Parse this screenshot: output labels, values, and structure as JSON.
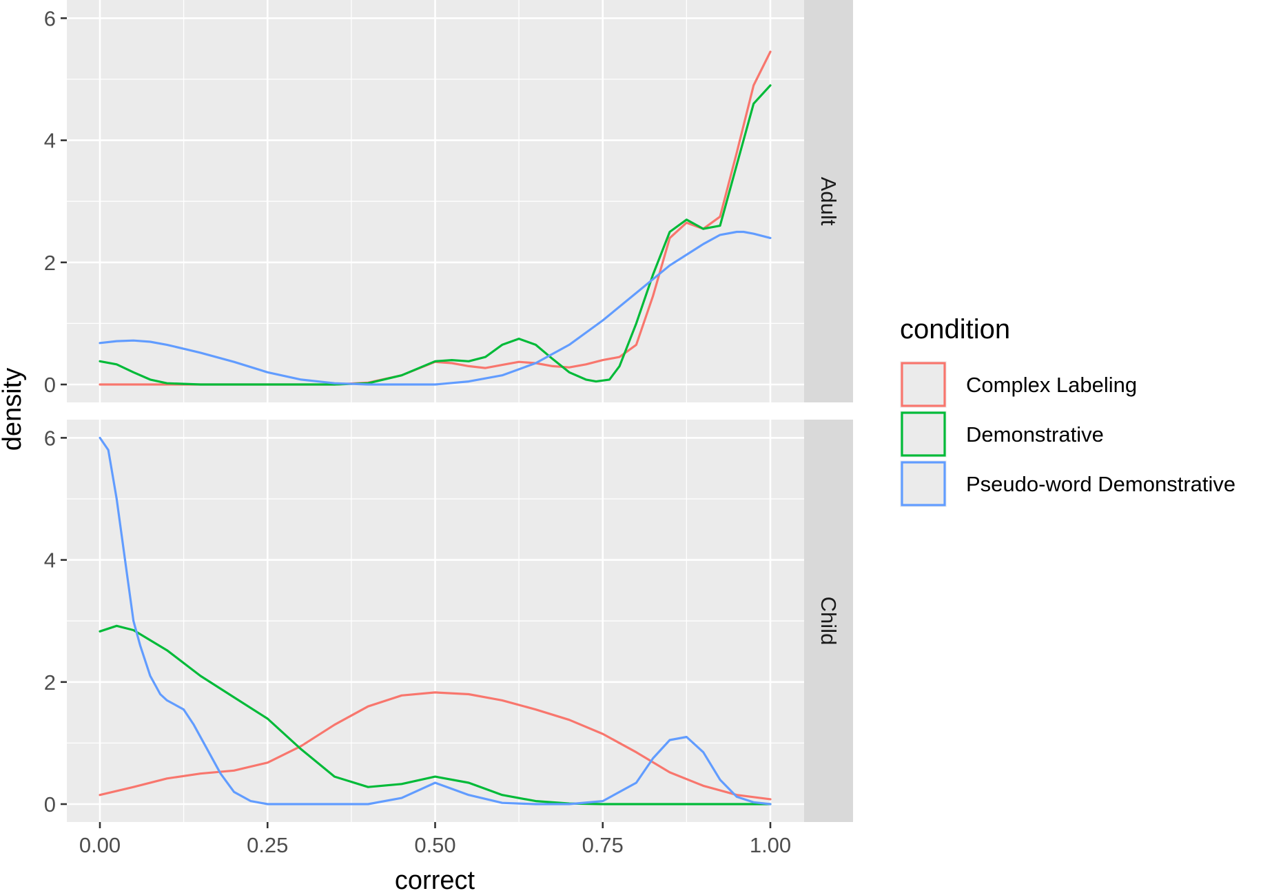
{
  "chart_data": {
    "type": "line",
    "facet_by": "age group",
    "xlabel": "correct",
    "ylabel": "density",
    "xlim": [
      0,
      1
    ],
    "ylim": [
      0,
      6.5
    ],
    "x_ticks": [
      0,
      0.25,
      0.5,
      0.75,
      1
    ],
    "x_tick_labels": [
      "0.00",
      "0.25",
      "0.50",
      "0.75",
      "1.00"
    ],
    "y_ticks": [
      0,
      2,
      4,
      6
    ],
    "y_tick_labels": [
      "0",
      "2",
      "4",
      "6"
    ],
    "grid": true,
    "legend": {
      "title": "condition",
      "position": "right",
      "entries": [
        {
          "name": "Complex Labeling",
          "color": "#F8766D"
        },
        {
          "name": "Demonstrative",
          "color": "#00BA38"
        },
        {
          "name": "Pseudo-word Demonstrative",
          "color": "#619CFF"
        }
      ]
    },
    "panels": [
      {
        "label": "Adult",
        "series": [
          {
            "name": "Complex Labeling",
            "color": "#F8766D",
            "x": [
              0,
              0.05,
              0.1,
              0.15,
              0.2,
              0.25,
              0.3,
              0.35,
              0.4,
              0.45,
              0.5,
              0.525,
              0.55,
              0.575,
              0.6,
              0.625,
              0.65,
              0.675,
              0.7,
              0.725,
              0.75,
              0.775,
              0.8,
              0.825,
              0.85,
              0.875,
              0.9,
              0.925,
              0.95,
              0.975,
              1.0
            ],
            "y": [
              0,
              0,
              0,
              0,
              0,
              0,
              0,
              0,
              0.03,
              0.15,
              0.37,
              0.35,
              0.3,
              0.27,
              0.32,
              0.37,
              0.35,
              0.3,
              0.28,
              0.33,
              0.4,
              0.45,
              0.65,
              1.45,
              2.4,
              2.65,
              2.55,
              2.75,
              3.8,
              4.9,
              5.45
            ]
          },
          {
            "name": "Demonstrative",
            "color": "#00BA38",
            "x": [
              0,
              0.025,
              0.05,
              0.075,
              0.1,
              0.15,
              0.2,
              0.25,
              0.3,
              0.35,
              0.4,
              0.45,
              0.5,
              0.525,
              0.55,
              0.575,
              0.6,
              0.625,
              0.65,
              0.675,
              0.7,
              0.725,
              0.74,
              0.76,
              0.775,
              0.8,
              0.825,
              0.85,
              0.875,
              0.9,
              0.925,
              0.95,
              0.975,
              1.0
            ],
            "y": [
              0.38,
              0.33,
              0.2,
              0.08,
              0.02,
              0,
              0,
              0,
              0,
              0,
              0.02,
              0.15,
              0.38,
              0.4,
              0.38,
              0.45,
              0.65,
              0.75,
              0.65,
              0.42,
              0.2,
              0.08,
              0.05,
              0.08,
              0.3,
              1.0,
              1.8,
              2.5,
              2.7,
              2.55,
              2.6,
              3.6,
              4.6,
              4.9
            ]
          },
          {
            "name": "Pseudo-word Demonstrative",
            "color": "#619CFF",
            "x": [
              0,
              0.025,
              0.05,
              0.075,
              0.1,
              0.15,
              0.2,
              0.25,
              0.3,
              0.35,
              0.4,
              0.45,
              0.5,
              0.55,
              0.6,
              0.65,
              0.7,
              0.75,
              0.8,
              0.85,
              0.9,
              0.925,
              0.95,
              0.96,
              0.975,
              1.0
            ],
            "y": [
              0.68,
              0.71,
              0.72,
              0.7,
              0.65,
              0.52,
              0.37,
              0.2,
              0.08,
              0.02,
              0,
              0,
              0,
              0.05,
              0.15,
              0.35,
              0.65,
              1.05,
              1.5,
              1.95,
              2.3,
              2.45,
              2.5,
              2.5,
              2.47,
              2.4
            ]
          }
        ]
      },
      {
        "label": "Child",
        "series": [
          {
            "name": "Complex Labeling",
            "color": "#F8766D",
            "x": [
              0,
              0.05,
              0.1,
              0.15,
              0.2,
              0.25,
              0.3,
              0.35,
              0.4,
              0.45,
              0.5,
              0.55,
              0.6,
              0.65,
              0.7,
              0.75,
              0.8,
              0.85,
              0.9,
              0.95,
              1.0
            ],
            "y": [
              0.15,
              0.28,
              0.42,
              0.5,
              0.55,
              0.68,
              0.95,
              1.3,
              1.6,
              1.78,
              1.83,
              1.8,
              1.7,
              1.55,
              1.38,
              1.15,
              0.85,
              0.52,
              0.3,
              0.15,
              0.08
            ]
          },
          {
            "name": "Demonstrative",
            "color": "#00BA38",
            "x": [
              0,
              0.025,
              0.05,
              0.1,
              0.15,
              0.2,
              0.25,
              0.3,
              0.35,
              0.4,
              0.45,
              0.5,
              0.55,
              0.6,
              0.65,
              0.7,
              0.75,
              0.8,
              0.85,
              0.9,
              0.95,
              1.0
            ],
            "y": [
              2.83,
              2.92,
              2.85,
              2.52,
              2.1,
              1.75,
              1.4,
              0.9,
              0.45,
              0.28,
              0.33,
              0.45,
              0.35,
              0.15,
              0.05,
              0.01,
              0,
              0,
              0,
              0,
              0,
              0
            ]
          },
          {
            "name": "Pseudo-word Demonstrative",
            "color": "#619CFF",
            "x": [
              0,
              0.0125,
              0.025,
              0.04,
              0.05,
              0.06,
              0.075,
              0.09,
              0.1,
              0.125,
              0.14,
              0.16,
              0.18,
              0.2,
              0.225,
              0.25,
              0.3,
              0.35,
              0.4,
              0.45,
              0.5,
              0.55,
              0.6,
              0.65,
              0.7,
              0.75,
              0.8,
              0.825,
              0.85,
              0.875,
              0.9,
              0.925,
              0.95,
              0.975,
              1.0
            ],
            "y": [
              6.0,
              5.8,
              5.0,
              3.8,
              3.0,
              2.6,
              2.1,
              1.8,
              1.7,
              1.55,
              1.3,
              0.9,
              0.5,
              0.2,
              0.05,
              0,
              0,
              0,
              0,
              0.1,
              0.35,
              0.15,
              0.02,
              0,
              0,
              0.05,
              0.35,
              0.75,
              1.05,
              1.1,
              0.85,
              0.4,
              0.12,
              0.03,
              0
            ]
          }
        ]
      }
    ]
  }
}
